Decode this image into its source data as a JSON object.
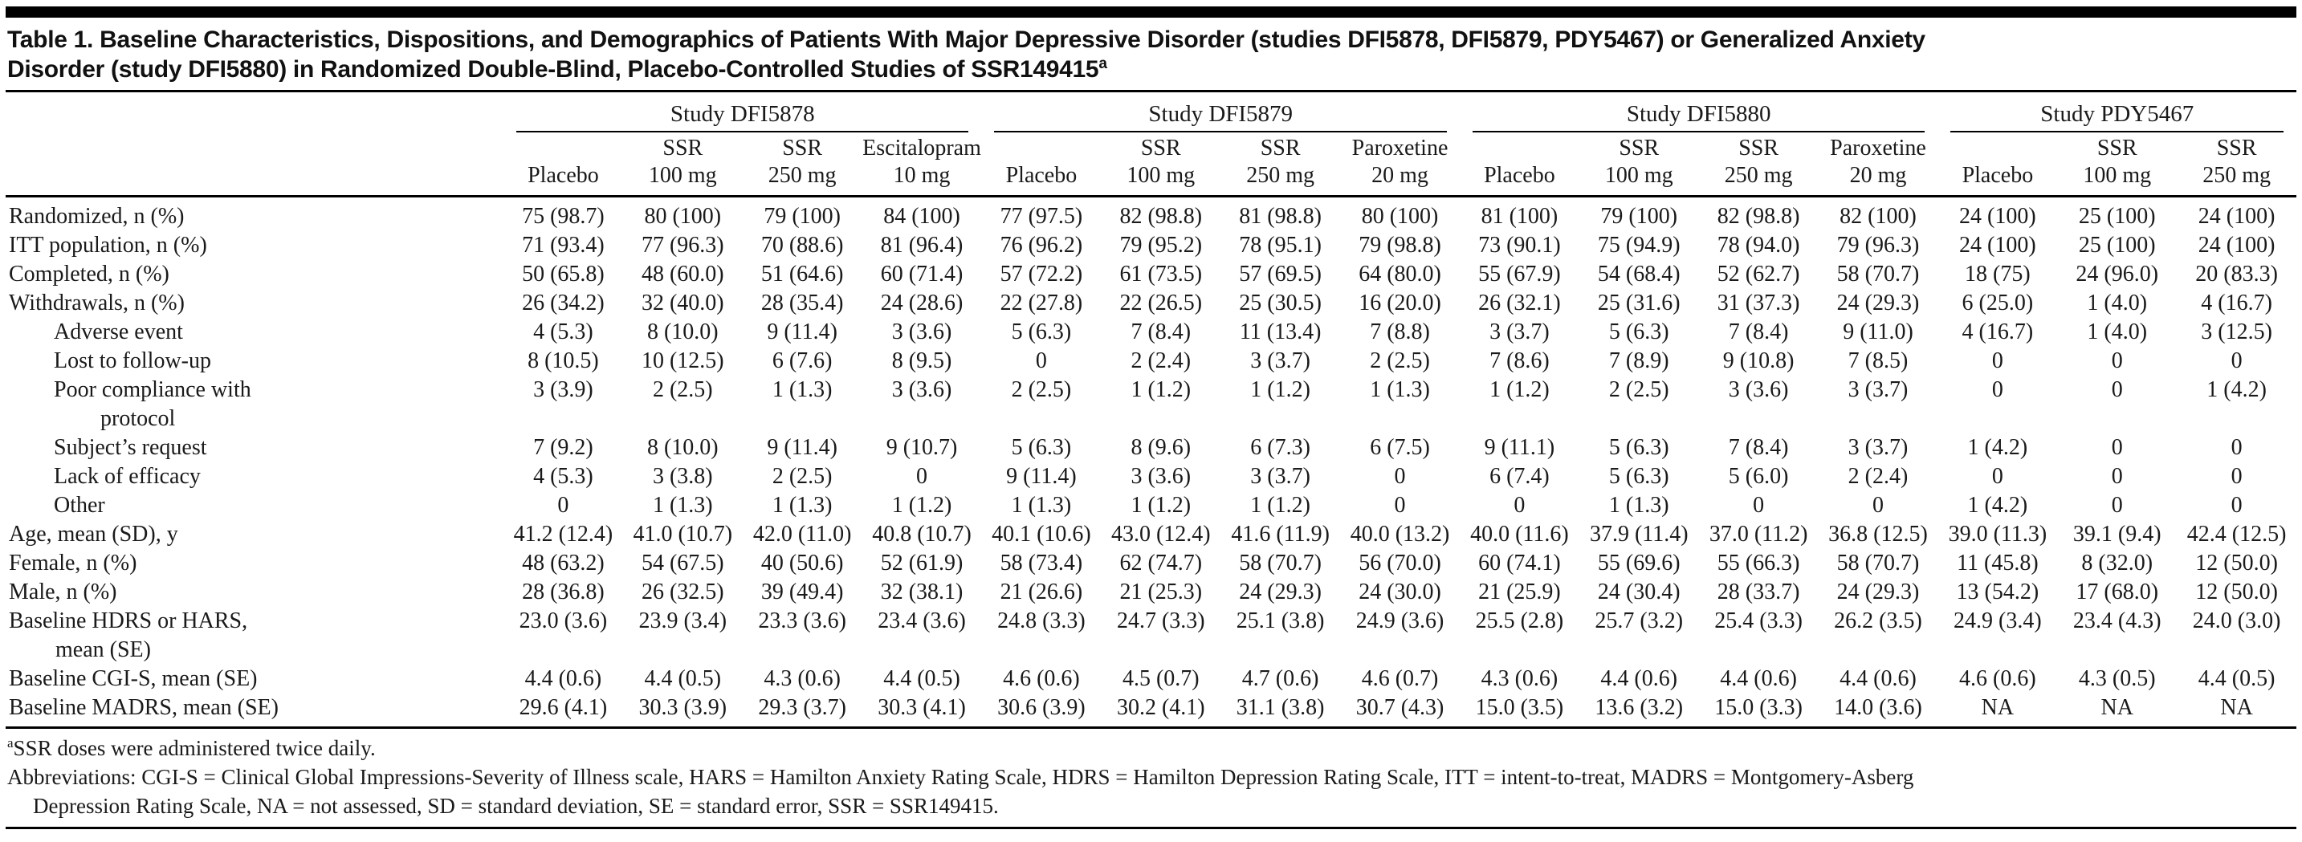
{
  "page": {
    "title_line1": "Table 1. Baseline Characteristics, Dispositions, and Demographics of Patients With Major Depressive Disorder (studies DFI5878, DFI5879, PDY5467) or Generalized Anxiety",
    "title_line2": "Disorder (study DFI5880) in Randomized Double-Blind, Placebo-Controlled Studies of SSR149415",
    "title_superscript": "a"
  },
  "table": {
    "column_groups": [
      {
        "label": "Study DFI5878",
        "columns": [
          [
            "",
            "Placebo"
          ],
          [
            "SSR",
            "100 mg"
          ],
          [
            "SSR",
            "250 mg"
          ],
          [
            "Escitalopram",
            "10 mg"
          ]
        ]
      },
      {
        "label": "Study DFI5879",
        "columns": [
          [
            "",
            "Placebo"
          ],
          [
            "SSR",
            "100 mg"
          ],
          [
            "SSR",
            "250 mg"
          ],
          [
            "Paroxetine",
            "20 mg"
          ]
        ]
      },
      {
        "label": "Study DFI5880",
        "columns": [
          [
            "",
            "Placebo"
          ],
          [
            "SSR",
            "100 mg"
          ],
          [
            "SSR",
            "250 mg"
          ],
          [
            "Paroxetine",
            "20 mg"
          ]
        ]
      },
      {
        "label": "Study PDY5467",
        "columns": [
          [
            "",
            "Placebo"
          ],
          [
            "SSR",
            "100 mg"
          ],
          [
            "SSR",
            "250 mg"
          ]
        ]
      }
    ],
    "rows": [
      {
        "label_lines": [
          "Randomized, n (%)"
        ],
        "indent": 0,
        "values": [
          "75 (98.7)",
          "80 (100)",
          "79 (100)",
          "84 (100)",
          "77 (97.5)",
          "82 (98.8)",
          "81 (98.8)",
          "80 (100)",
          "81 (100)",
          "79 (100)",
          "82 (98.8)",
          "82 (100)",
          "24 (100)",
          "25 (100)",
          "24 (100)"
        ]
      },
      {
        "label_lines": [
          "ITT population, n (%)"
        ],
        "indent": 0,
        "values": [
          "71 (93.4)",
          "77 (96.3)",
          "70 (88.6)",
          "81 (96.4)",
          "76 (96.2)",
          "79 (95.2)",
          "78 (95.1)",
          "79 (98.8)",
          "73 (90.1)",
          "75 (94.9)",
          "78 (94.0)",
          "79 (96.3)",
          "24 (100)",
          "25 (100)",
          "24 (100)"
        ]
      },
      {
        "label_lines": [
          "Completed, n (%)"
        ],
        "indent": 0,
        "values": [
          "50 (65.8)",
          "48 (60.0)",
          "51 (64.6)",
          "60 (71.4)",
          "57 (72.2)",
          "61 (73.5)",
          "57 (69.5)",
          "64 (80.0)",
          "55 (67.9)",
          "54 (68.4)",
          "52 (62.7)",
          "58 (70.7)",
          "18 (75)",
          "24 (96.0)",
          "20 (83.3)"
        ]
      },
      {
        "label_lines": [
          "Withdrawals, n (%)"
        ],
        "indent": 0,
        "values": [
          "26 (34.2)",
          "32 (40.0)",
          "28 (35.4)",
          "24 (28.6)",
          "22 (27.8)",
          "22 (26.5)",
          "25 (30.5)",
          "16 (20.0)",
          "26 (32.1)",
          "25 (31.6)",
          "31 (37.3)",
          "24 (29.3)",
          "6 (25.0)",
          "1 (4.0)",
          "4 (16.7)"
        ]
      },
      {
        "label_lines": [
          "Adverse event"
        ],
        "indent": 1,
        "values": [
          "4 (5.3)",
          "8 (10.0)",
          "9 (11.4)",
          "3 (3.6)",
          "5 (6.3)",
          "7 (8.4)",
          "11 (13.4)",
          "7 (8.8)",
          "3 (3.7)",
          "5 (6.3)",
          "7 (8.4)",
          "9 (11.0)",
          "4 (16.7)",
          "1 (4.0)",
          "3 (12.5)"
        ]
      },
      {
        "label_lines": [
          "Lost to follow-up"
        ],
        "indent": 1,
        "values": [
          "8 (10.5)",
          "10 (12.5)",
          "6 (7.6)",
          "8 (9.5)",
          "0",
          "2 (2.4)",
          "3 (3.7)",
          "2 (2.5)",
          "7 (8.6)",
          "7 (8.9)",
          "9 (10.8)",
          "7 (8.5)",
          "0",
          "0",
          "0"
        ]
      },
      {
        "label_lines": [
          "Poor compliance with",
          "protocol"
        ],
        "indent": 1,
        "values": [
          "3 (3.9)",
          "2 (2.5)",
          "1 (1.3)",
          "3 (3.6)",
          "2 (2.5)",
          "1 (1.2)",
          "1 (1.2)",
          "1 (1.3)",
          "1 (1.2)",
          "2 (2.5)",
          "3 (3.6)",
          "3 (3.7)",
          "0",
          "0",
          "1 (4.2)"
        ]
      },
      {
        "label_lines": [
          "Subject’s request"
        ],
        "indent": 1,
        "values": [
          "7 (9.2)",
          "8 (10.0)",
          "9 (11.4)",
          "9 (10.7)",
          "5 (6.3)",
          "8 (9.6)",
          "6 (7.3)",
          "6 (7.5)",
          "9 (11.1)",
          "5 (6.3)",
          "7 (8.4)",
          "3 (3.7)",
          "1 (4.2)",
          "0",
          "0"
        ]
      },
      {
        "label_lines": [
          "Lack of efficacy"
        ],
        "indent": 1,
        "values": [
          "4 (5.3)",
          "3 (3.8)",
          "2 (2.5)",
          "0",
          "9 (11.4)",
          "3 (3.6)",
          "3 (3.7)",
          "0",
          "6 (7.4)",
          "5 (6.3)",
          "5 (6.0)",
          "2 (2.4)",
          "0",
          "0",
          "0"
        ]
      },
      {
        "label_lines": [
          "Other"
        ],
        "indent": 1,
        "values": [
          "0",
          "1 (1.3)",
          "1 (1.3)",
          "1 (1.2)",
          "1 (1.3)",
          "1 (1.2)",
          "1 (1.2)",
          "0",
          "0",
          "1 (1.3)",
          "0",
          "0",
          "1 (4.2)",
          "0",
          "0"
        ]
      },
      {
        "label_lines": [
          "Age, mean (SD), y"
        ],
        "indent": 0,
        "values": [
          "41.2 (12.4)",
          "41.0 (10.7)",
          "42.0 (11.0)",
          "40.8 (10.7)",
          "40.1 (10.6)",
          "43.0 (12.4)",
          "41.6 (11.9)",
          "40.0 (13.2)",
          "40.0 (11.6)",
          "37.9 (11.4)",
          "37.0 (11.2)",
          "36.8 (12.5)",
          "39.0 (11.3)",
          "39.1 (9.4)",
          "42.4 (12.5)"
        ]
      },
      {
        "label_lines": [
          "Female, n (%)"
        ],
        "indent": 0,
        "values": [
          "48 (63.2)",
          "54 (67.5)",
          "40 (50.6)",
          "52 (61.9)",
          "58 (73.4)",
          "62 (74.7)",
          "58 (70.7)",
          "56 (70.0)",
          "60 (74.1)",
          "55 (69.6)",
          "55 (66.3)",
          "58 (70.7)",
          "11 (45.8)",
          "8 (32.0)",
          "12 (50.0)"
        ]
      },
      {
        "label_lines": [
          "Male, n (%)"
        ],
        "indent": 0,
        "values": [
          "28 (36.8)",
          "26 (32.5)",
          "39 (49.4)",
          "32 (38.1)",
          "21 (26.6)",
          "21 (25.3)",
          "24 (29.3)",
          "24 (30.0)",
          "21 (25.9)",
          "24 (30.4)",
          "28 (33.7)",
          "24 (29.3)",
          "13 (54.2)",
          "17 (68.0)",
          "12 (50.0)"
        ]
      },
      {
        "label_lines": [
          "Baseline HDRS or HARS,",
          "mean (SE)"
        ],
        "indent": 0,
        "values": [
          "23.0 (3.6)",
          "23.9 (3.4)",
          "23.3 (3.6)",
          "23.4 (3.6)",
          "24.8 (3.3)",
          "24.7 (3.3)",
          "25.1 (3.8)",
          "24.9 (3.6)",
          "25.5 (2.8)",
          "25.7 (3.2)",
          "25.4 (3.3)",
          "26.2 (3.5)",
          "24.9 (3.4)",
          "23.4 (4.3)",
          "24.0 (3.0)"
        ]
      },
      {
        "label_lines": [
          "Baseline CGI-S, mean (SE)"
        ],
        "indent": 0,
        "values": [
          "4.4 (0.6)",
          "4.4 (0.5)",
          "4.3 (0.6)",
          "4.4 (0.5)",
          "4.6 (0.6)",
          "4.5 (0.7)",
          "4.7 (0.6)",
          "4.6 (0.7)",
          "4.3 (0.6)",
          "4.4 (0.6)",
          "4.4 (0.6)",
          "4.4 (0.6)",
          "4.6 (0.6)",
          "4.3 (0.5)",
          "4.4 (0.5)"
        ]
      },
      {
        "label_lines": [
          "Baseline MADRS, mean (SE)"
        ],
        "indent": 0,
        "values": [
          "29.6 (4.1)",
          "30.3 (3.9)",
          "29.3 (3.7)",
          "30.3 (4.1)",
          "30.6 (3.9)",
          "30.2 (4.1)",
          "31.1 (3.8)",
          "30.7 (4.3)",
          "15.0 (3.5)",
          "13.6 (3.2)",
          "15.0 (3.3)",
          "14.0 (3.6)",
          "NA",
          "NA",
          "NA"
        ]
      }
    ]
  },
  "footnotes": {
    "a_superscript": "a",
    "a_text": "SSR doses were administered twice daily.",
    "abbrev_line1": "Abbreviations: CGI-S = Clinical Global Impressions-Severity of Illness scale, HARS = Hamilton Anxiety Rating Scale, HDRS = Hamilton Depression Rating Scale, ITT = intent-to-treat, MADRS = Montgomery-Asberg",
    "abbrev_line2": "Depression Rating Scale, NA = not assessed, SD = standard deviation, SE = standard error, SSR = SSR149415."
  }
}
